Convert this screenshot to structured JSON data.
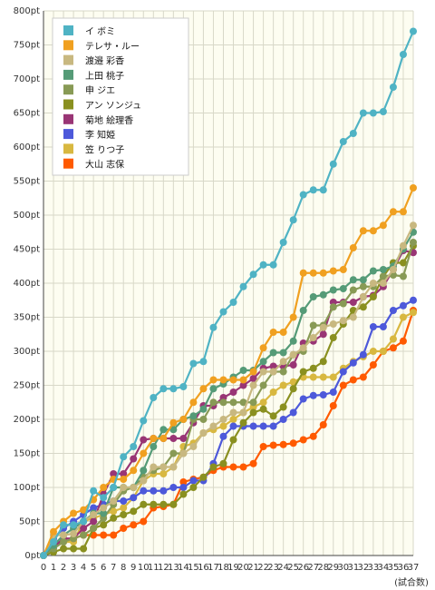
{
  "chart_data": {
    "type": "line",
    "x": [
      0,
      1,
      2,
      3,
      4,
      5,
      6,
      7,
      8,
      9,
      10,
      11,
      12,
      13,
      14,
      15,
      16,
      17,
      18,
      19,
      20,
      21,
      22,
      23,
      24,
      25,
      26,
      27,
      28,
      29,
      30,
      31,
      32,
      33,
      34,
      35,
      36,
      37
    ],
    "x_label": "(試合数)",
    "y_tick_suffix": "pt",
    "ylim": [
      0,
      800
    ],
    "y_ticks": [
      0,
      50,
      100,
      150,
      200,
      250,
      300,
      350,
      400,
      450,
      500,
      550,
      600,
      650,
      700,
      750,
      800
    ],
    "grid": true,
    "legend_position": "top-left",
    "series": [
      {
        "name": "イ ボミ",
        "color": "#4fb3c4",
        "values": [
          0,
          20,
          45,
          45,
          50,
          95,
          85,
          100,
          145,
          160,
          198,
          232,
          245,
          245,
          248,
          282,
          285,
          335,
          358,
          372,
          395,
          413,
          427,
          427,
          460,
          493,
          530,
          537,
          537,
          575,
          608,
          620,
          650,
          650,
          652,
          688,
          736,
          770
        ]
      },
      {
        "name": "テレサ・ルー",
        "color": "#f0a020",
        "values": [
          0,
          35,
          50,
          62,
          67,
          82,
          100,
          112,
          112,
          125,
          150,
          172,
          172,
          195,
          200,
          225,
          245,
          258,
          258,
          258,
          258,
          270,
          305,
          328,
          328,
          350,
          415,
          415,
          415,
          418,
          420,
          452,
          477,
          477,
          485,
          505,
          505,
          540
        ]
      },
      {
        "name": "渡邉 彩香",
        "color": "#c8b880",
        "values": [
          0,
          30,
          30,
          32,
          50,
          60,
          70,
          80,
          100,
          100,
          110,
          130,
          130,
          130,
          150,
          160,
          180,
          190,
          200,
          210,
          210,
          250,
          270,
          270,
          285,
          295,
          305,
          320,
          335,
          340,
          345,
          350,
          380,
          400,
          400,
          420,
          455,
          485
        ]
      },
      {
        "name": "上田 桃子",
        "color": "#559b77",
        "values": [
          0,
          15,
          30,
          40,
          50,
          62,
          62,
          100,
          100,
          100,
          125,
          160,
          185,
          185,
          200,
          205,
          215,
          245,
          252,
          262,
          272,
          272,
          285,
          298,
          298,
          315,
          360,
          380,
          383,
          390,
          392,
          405,
          405,
          418,
          420,
          425,
          450,
          475
        ]
      },
      {
        "name": "申 ジエ",
        "color": "#889a55",
        "values": [
          0,
          10,
          20,
          25,
          30,
          40,
          55,
          75,
          95,
          100,
          115,
          125,
          130,
          150,
          150,
          200,
          200,
          225,
          225,
          225,
          225,
          225,
          250,
          270,
          270,
          295,
          300,
          338,
          338,
          365,
          370,
          390,
          395,
          395,
          410,
          412,
          410,
          460
        ]
      },
      {
        "name": "アン ソンジュ",
        "color": "#8a9020",
        "values": [
          0,
          5,
          10,
          10,
          10,
          40,
          45,
          55,
          60,
          65,
          75,
          75,
          75,
          75,
          90,
          100,
          115,
          130,
          135,
          170,
          195,
          210,
          215,
          205,
          218,
          245,
          270,
          275,
          285,
          320,
          340,
          360,
          365,
          380,
          410,
          430,
          430,
          455
        ]
      },
      {
        "name": "菊地 絵理香",
        "color": "#993575",
        "values": [
          0,
          12,
          25,
          25,
          40,
          50,
          90,
          120,
          120,
          142,
          170,
          172,
          172,
          172,
          172,
          195,
          220,
          220,
          232,
          240,
          250,
          260,
          275,
          278,
          278,
          280,
          312,
          315,
          325,
          372,
          372,
          372,
          380,
          382,
          395,
          420,
          448,
          445
        ]
      },
      {
        "name": "李 知姫",
        "color": "#4d59da",
        "values": [
          0,
          25,
          40,
          50,
          60,
          70,
          75,
          80,
          80,
          85,
          95,
          95,
          95,
          100,
          100,
          110,
          110,
          135,
          175,
          190,
          190,
          190,
          190,
          190,
          200,
          210,
          230,
          235,
          236,
          240,
          270,
          283,
          295,
          336,
          336,
          360,
          367,
          375
        ]
      },
      {
        "name": "笠 りつ子",
        "color": "#d8b840",
        "values": [
          0,
          20,
          20,
          20,
          50,
          55,
          60,
          65,
          70,
          85,
          110,
          120,
          120,
          130,
          160,
          165,
          180,
          185,
          190,
          200,
          210,
          218,
          225,
          240,
          250,
          255,
          262,
          262,
          262,
          262,
          275,
          285,
          292,
          300,
          300,
          318,
          350,
          357
        ]
      },
      {
        "name": "大山 志保",
        "color": "#ff5a00",
        "values": [
          0,
          15,
          20,
          25,
          30,
          30,
          30,
          30,
          40,
          45,
          50,
          70,
          72,
          75,
          108,
          112,
          115,
          125,
          130,
          130,
          130,
          135,
          160,
          162,
          163,
          165,
          170,
          175,
          192,
          220,
          250,
          258,
          262,
          280,
          300,
          305,
          315,
          360
        ]
      }
    ]
  }
}
